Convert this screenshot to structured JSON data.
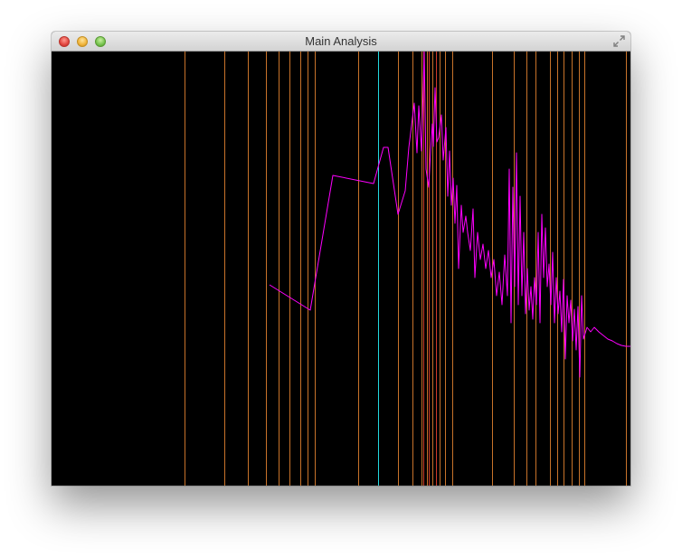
{
  "window": {
    "title": "Main Analysis",
    "buttons": {
      "close_icon": "close-icon",
      "minimize_icon": "minimize-icon",
      "zoom_icon": "zoom-icon",
      "fullscreen_icon": "fullscreen-icon"
    }
  },
  "colors": {
    "background": "#000000",
    "spectrum": "#ff00ff",
    "marker_orange": "#c8732a",
    "marker_cyan": "#22d8e0",
    "marker_red": "#d03a2a"
  },
  "chart_data": {
    "type": "line",
    "grid": false,
    "xlim": [
      0,
      640
    ],
    "ylim": [
      480,
      0
    ],
    "markers_orange": [
      147,
      191,
      217,
      237,
      251,
      263,
      275,
      283,
      291,
      339,
      383,
      399,
      409,
      415,
      421,
      429,
      435,
      443,
      487,
      511,
      525,
      535,
      551,
      559,
      566,
      575,
      583,
      589,
      635
    ],
    "markers_red": [
      411,
      417,
      425
    ],
    "markers_cyan": [
      361
    ],
    "series": [
      {
        "x": [
          241,
          286,
          311,
          356,
          367,
          372,
          383,
          391,
          395,
          401,
          404,
          406,
          409,
          412,
          414,
          417,
          419,
          421,
          422,
          424,
          426,
          428,
          431,
          433,
          436,
          438,
          440,
          442,
          444,
          446,
          448,
          450,
          453,
          455,
          458,
          460,
          463,
          466,
          468,
          471,
          474,
          477,
          480,
          483,
          486,
          489,
          492,
          495,
          498,
          501,
          504,
          506,
          508,
          510,
          512,
          514,
          516,
          518,
          520,
          522,
          524,
          526,
          528,
          530,
          532,
          534,
          536,
          538,
          540,
          542,
          544,
          546,
          548,
          550,
          552,
          554,
          556,
          558,
          560,
          562,
          564,
          566,
          568,
          570,
          572,
          574,
          576,
          578,
          580,
          582,
          584,
          586,
          588,
          592,
          596,
          600,
          605,
          610,
          615,
          620,
          625,
          630,
          635,
          640
        ],
        "y": [
          258,
          286,
          137,
          146,
          106,
          106,
          180,
          154,
          106,
          57,
          112,
          60,
          110,
          0,
          130,
          150,
          110,
          80,
          105,
          40,
          100,
          95,
          70,
          120,
          84,
          160,
          110,
          170,
          140,
          190,
          148,
          240,
          170,
          200,
          182,
          200,
          220,
          174,
          250,
          200,
          230,
          213,
          240,
          220,
          250,
          230,
          270,
          244,
          280,
          225,
          270,
          130,
          300,
          150,
          260,
          112,
          280,
          160,
          270,
          200,
          290,
          240,
          286,
          260,
          296,
          250,
          280,
          200,
          300,
          180,
          250,
          195,
          260,
          235,
          280,
          222,
          300,
          250,
          290,
          265,
          310,
          252,
          340,
          270,
          300,
          275,
          320,
          285,
          330,
          282,
          360,
          270,
          318,
          305,
          310,
          305,
          310,
          314,
          318,
          320,
          323,
          325,
          326,
          326
        ]
      }
    ]
  }
}
